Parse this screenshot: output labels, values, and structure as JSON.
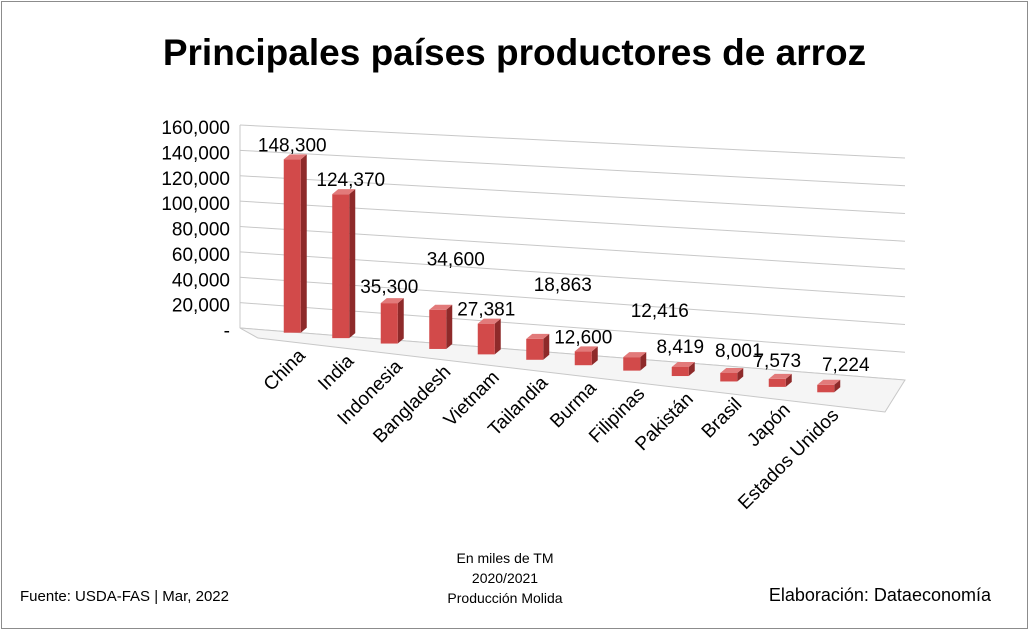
{
  "chart_data": {
    "type": "bar",
    "title": "Principales países productores de arroz",
    "categories": [
      "China",
      "India",
      "Indonesia",
      "Bangladesh",
      "Vietnam",
      "Tailandia",
      "Burma",
      "Filipinas",
      "Pakistán",
      "Brasil",
      "Japón",
      "Estados Unidos"
    ],
    "values": [
      148300,
      124370,
      35300,
      34600,
      27381,
      18863,
      12600,
      12416,
      8419,
      8001,
      7573,
      7224
    ],
    "value_labels": [
      "148,300",
      "124,370",
      "35,300",
      "34,600",
      "27,381",
      "18,863",
      "12,600",
      "12,416",
      "8,419",
      "8,001",
      "7,573",
      "7,224"
    ],
    "ylim": [
      0,
      160000
    ],
    "yticks": [
      "-",
      "20,000",
      "40,000",
      "60,000",
      "80,000",
      "100,000",
      "120,000",
      "140,000",
      "160,000"
    ],
    "grid": true,
    "legend": "none",
    "bar_color": "#d24a4a"
  },
  "footer": {
    "source": "Fuente:  USDA-FAS | Mar, 2022",
    "credit": "Elaboración: Dataeconomía",
    "note_lines": [
      "En miles de TM",
      "2020/2021",
      "Producción Molida"
    ]
  }
}
